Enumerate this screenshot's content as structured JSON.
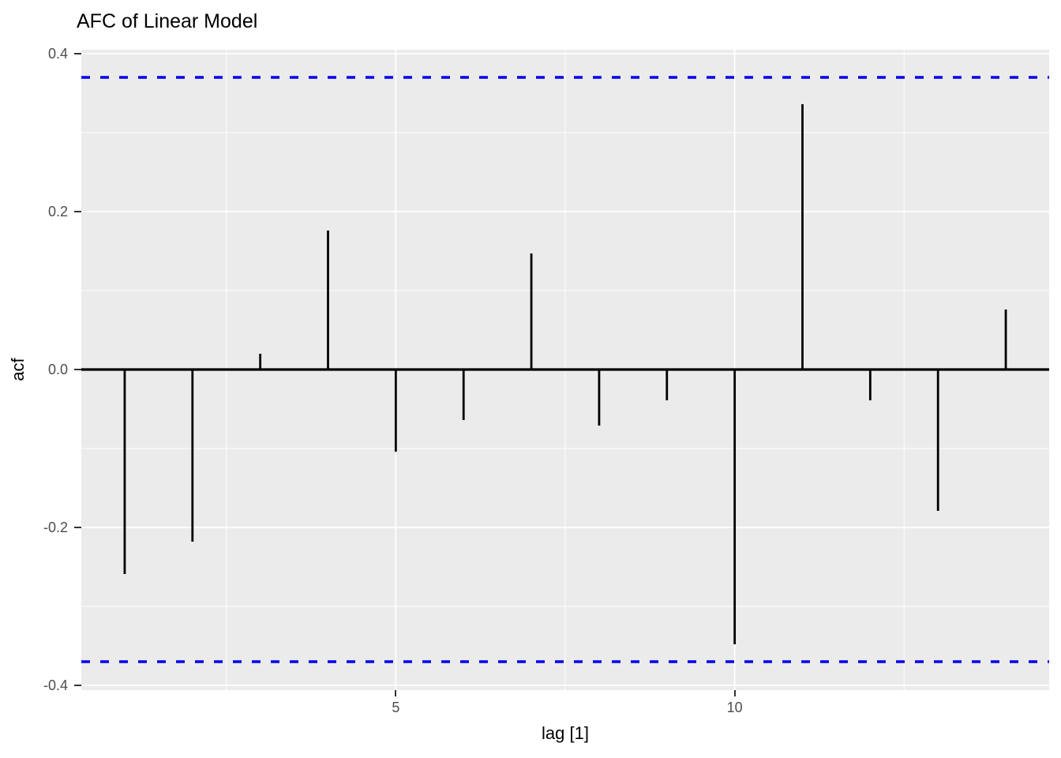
{
  "chart_data": {
    "type": "bar",
    "subtype": "acf-lollipop",
    "title": "AFC of Linear Model",
    "xlabel": "lag [1]",
    "ylabel": "acf",
    "x": [
      1,
      2,
      3,
      4,
      5,
      6,
      7,
      8,
      9,
      10,
      11,
      12,
      13,
      14
    ],
    "values": [
      -0.259,
      -0.218,
      0.02,
      0.176,
      -0.104,
      -0.064,
      0.147,
      -0.071,
      -0.039,
      -0.348,
      0.336,
      -0.039,
      -0.179,
      0.076
    ],
    "confidence_bounds": {
      "upper": 0.37,
      "lower": -0.37,
      "line_style": "dashed"
    },
    "zero_line": 0,
    "axes": {
      "xlim": [
        0.36,
        14.64
      ],
      "ylim": [
        -0.406,
        0.405
      ],
      "x_ticks": [
        {
          "label": "5",
          "value": 5
        },
        {
          "label": "10",
          "value": 10
        }
      ],
      "y_ticks": [
        {
          "label": "0.4",
          "value": 0.4
        },
        {
          "label": "0.2",
          "value": 0.2
        },
        {
          "label": "0.0",
          "value": 0.0
        },
        {
          "label": "-0.2",
          "value": -0.2
        },
        {
          "label": "-0.4",
          "value": -0.4
        }
      ],
      "x_minor_gridlines": [
        2.5,
        7.5,
        12.5
      ],
      "y_minor_gridlines": [
        0.3,
        0.1,
        -0.1,
        -0.3
      ],
      "grid": "on",
      "legend": "none"
    },
    "colors": {
      "panel_background": "#EBEBEB",
      "gridline": "#FFFFFF",
      "bar": "#000000",
      "zero_line": "#000000",
      "confidence_line": "#0000EE",
      "tick_label": "#4D4D4D",
      "tick_mark": "#333333",
      "title_text": "#000000"
    }
  }
}
